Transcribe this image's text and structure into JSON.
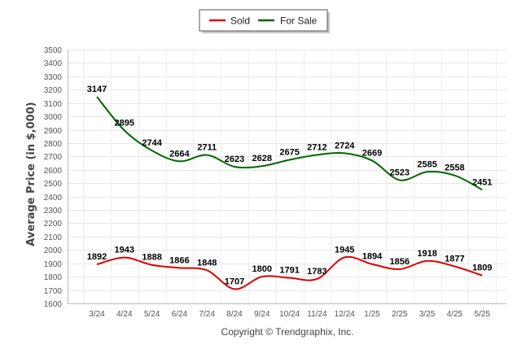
{
  "chart_data": {
    "type": "line",
    "ylabel": "Average Price (in $,000)",
    "ylim": [
      1600,
      3500
    ],
    "yticks": [
      1600,
      1700,
      1800,
      1900,
      2000,
      2100,
      2200,
      2300,
      2400,
      2500,
      2600,
      2700,
      2800,
      2900,
      3000,
      3100,
      3200,
      3300,
      3400,
      3500
    ],
    "categories": [
      "3/24",
      "4/24",
      "5/24",
      "6/24",
      "7/24",
      "8/24",
      "9/24",
      "10/24",
      "11/24",
      "12/24",
      "1/25",
      "2/25",
      "3/25",
      "4/25",
      "5/25"
    ],
    "grid": true,
    "legend_position": "top-center",
    "series": [
      {
        "name": "Sold",
        "color": "#dd0000",
        "values": [
          1892,
          1943,
          1888,
          1866,
          1848,
          1707,
          1800,
          1791,
          1783,
          1945,
          1894,
          1856,
          1918,
          1877,
          1809
        ]
      },
      {
        "name": "For Sale",
        "color": "#006600",
        "values": [
          3147,
          2895,
          2744,
          2664,
          2711,
          2623,
          2628,
          2675,
          2712,
          2724,
          2669,
          2523,
          2585,
          2558,
          2451
        ]
      }
    ]
  },
  "footer": {
    "credit": "Copyright © Trendgraphix, Inc."
  }
}
